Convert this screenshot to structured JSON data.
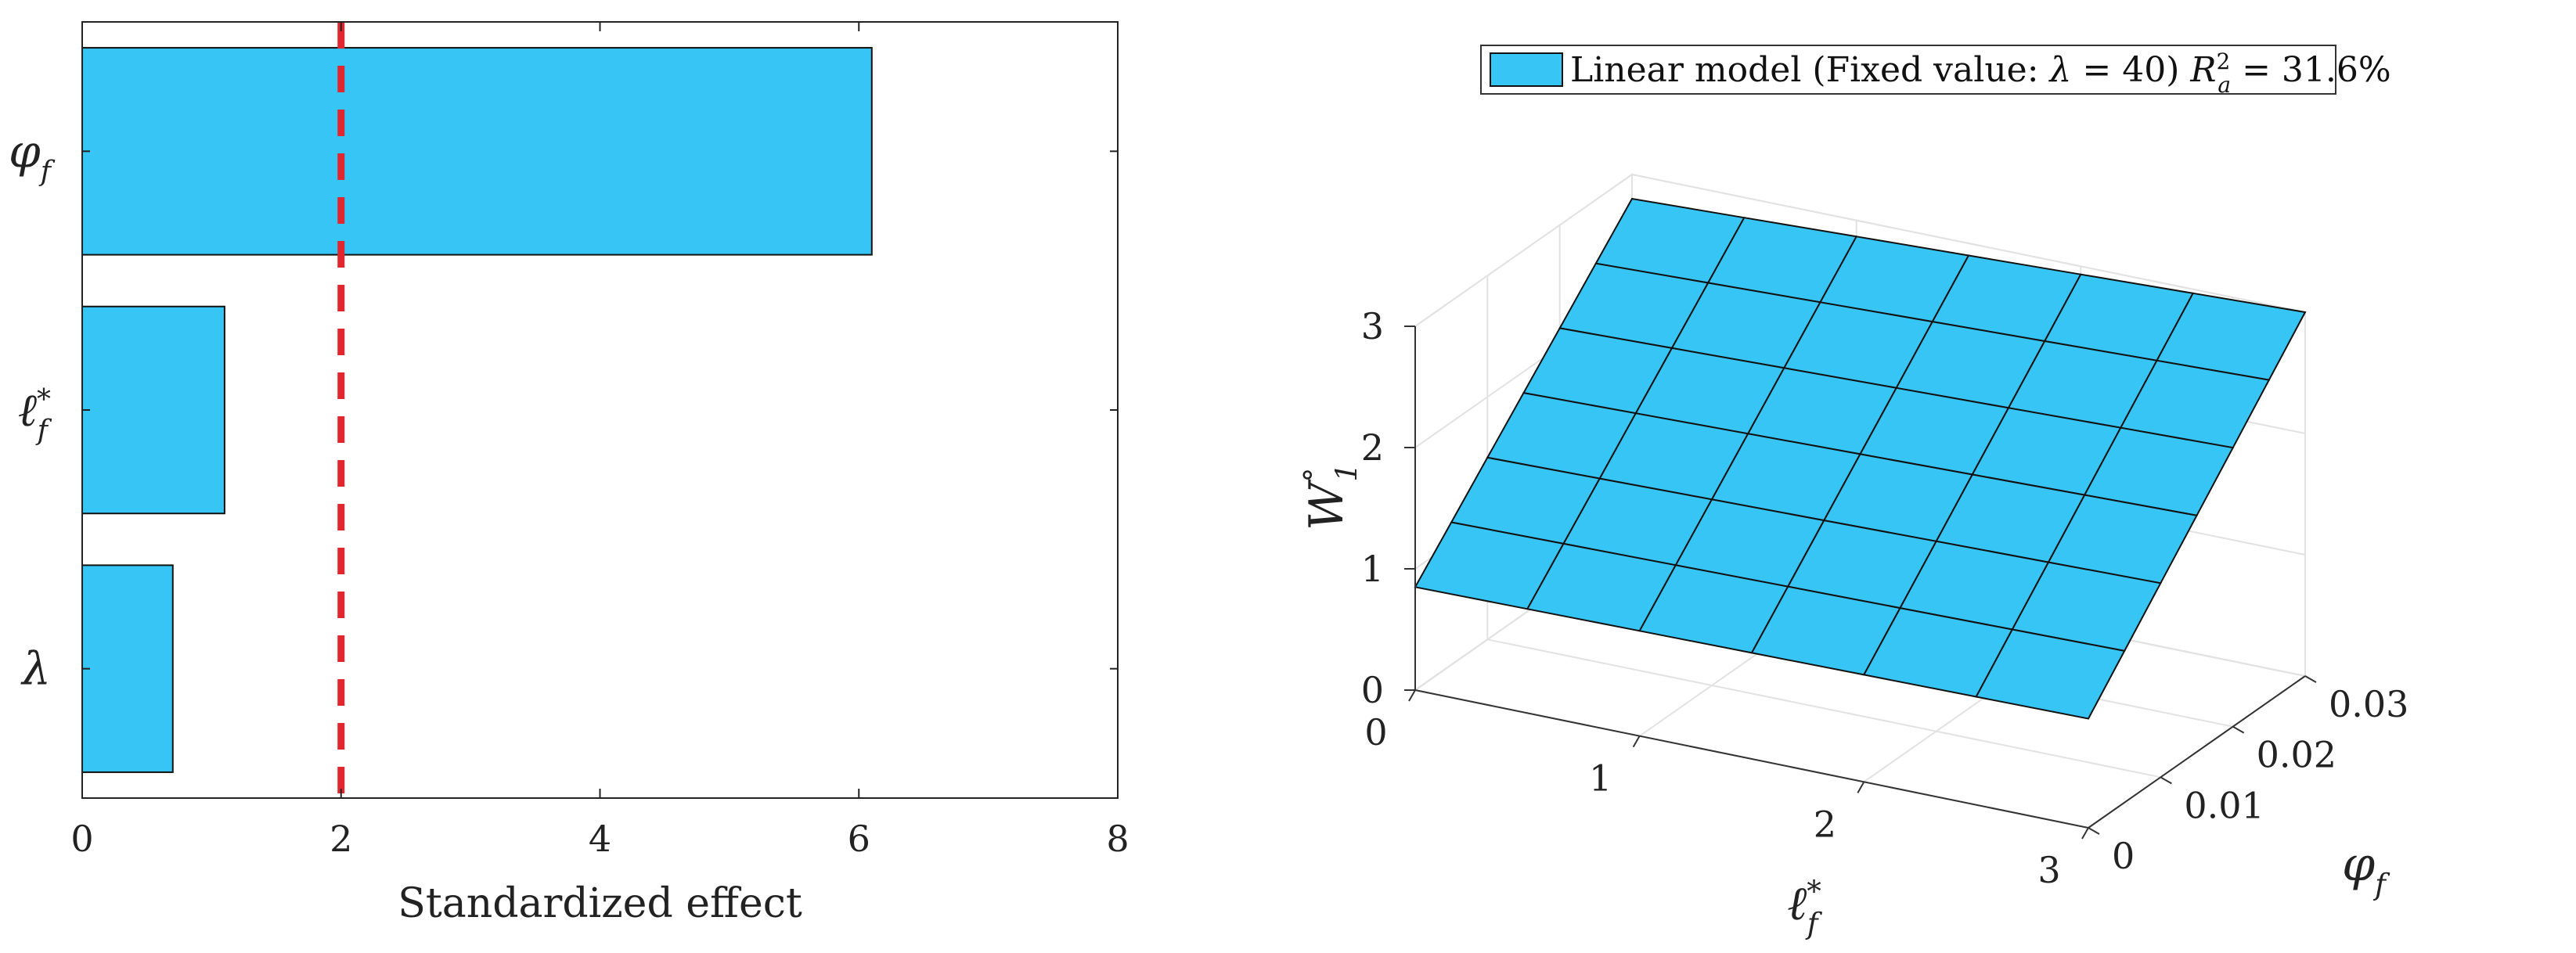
{
  "chart_data": [
    {
      "type": "bar",
      "orientation": "horizontal",
      "categories": [
        "φ_f",
        "ℓ*_f",
        "λ"
      ],
      "category_labels": [
        {
          "base": "φ",
          "sub": "f",
          "sup": ""
        },
        {
          "base": "ℓ",
          "sub": "f",
          "sup": "*"
        },
        {
          "base": "λ",
          "sub": "",
          "sup": ""
        }
      ],
      "values": [
        6.1,
        1.1,
        0.7
      ],
      "xlabel": "Standardized effect",
      "xlim": [
        0,
        8
      ],
      "xticks": [
        "0",
        "2",
        "4",
        "6",
        "8"
      ],
      "reference_line": {
        "x": 2,
        "style": "dashed",
        "color": "#e0262e"
      },
      "bar_color": "#36c5f4",
      "grid": false
    },
    {
      "type": "surface",
      "model": "linear",
      "legend": {
        "label_prefix": "Linear model (Fixed value: ",
        "fixed_var": "λ",
        "fixed_eq": " = 40) ",
        "r2_var": "R",
        "r2_sub": "a",
        "r2_sup": "2",
        "r2_eq": " = 31.6%",
        "placement": "top"
      },
      "x_label": {
        "base": "ℓ",
        "sub": "f",
        "sup": "*"
      },
      "y_label": {
        "base": "φ",
        "sub": "f",
        "sup": ""
      },
      "z_label": {
        "base": "W",
        "sub": "1",
        "sup": "°"
      },
      "x_range": [
        0,
        3
      ],
      "y_range": [
        0,
        0.03
      ],
      "z_range": [
        0,
        3
      ],
      "x_ticks": [
        "0",
        "1",
        "2",
        "3"
      ],
      "y_ticks": [
        "0",
        "0.01",
        "0.02",
        "0.03"
      ],
      "z_ticks": [
        "0",
        "1",
        "2",
        "3"
      ],
      "grid_divisions": [
        6,
        6
      ],
      "surface_color": "#36c5f4",
      "corner_values": [
        {
          "x": 0,
          "y": 0,
          "z": 0.85
        },
        {
          "x": 3,
          "y": 0,
          "z": 0.9
        },
        {
          "x": 3,
          "y": 0.03,
          "z": 3.0
        },
        {
          "x": 0,
          "y": 0.03,
          "z": 2.8
        }
      ],
      "grid": true
    }
  ]
}
